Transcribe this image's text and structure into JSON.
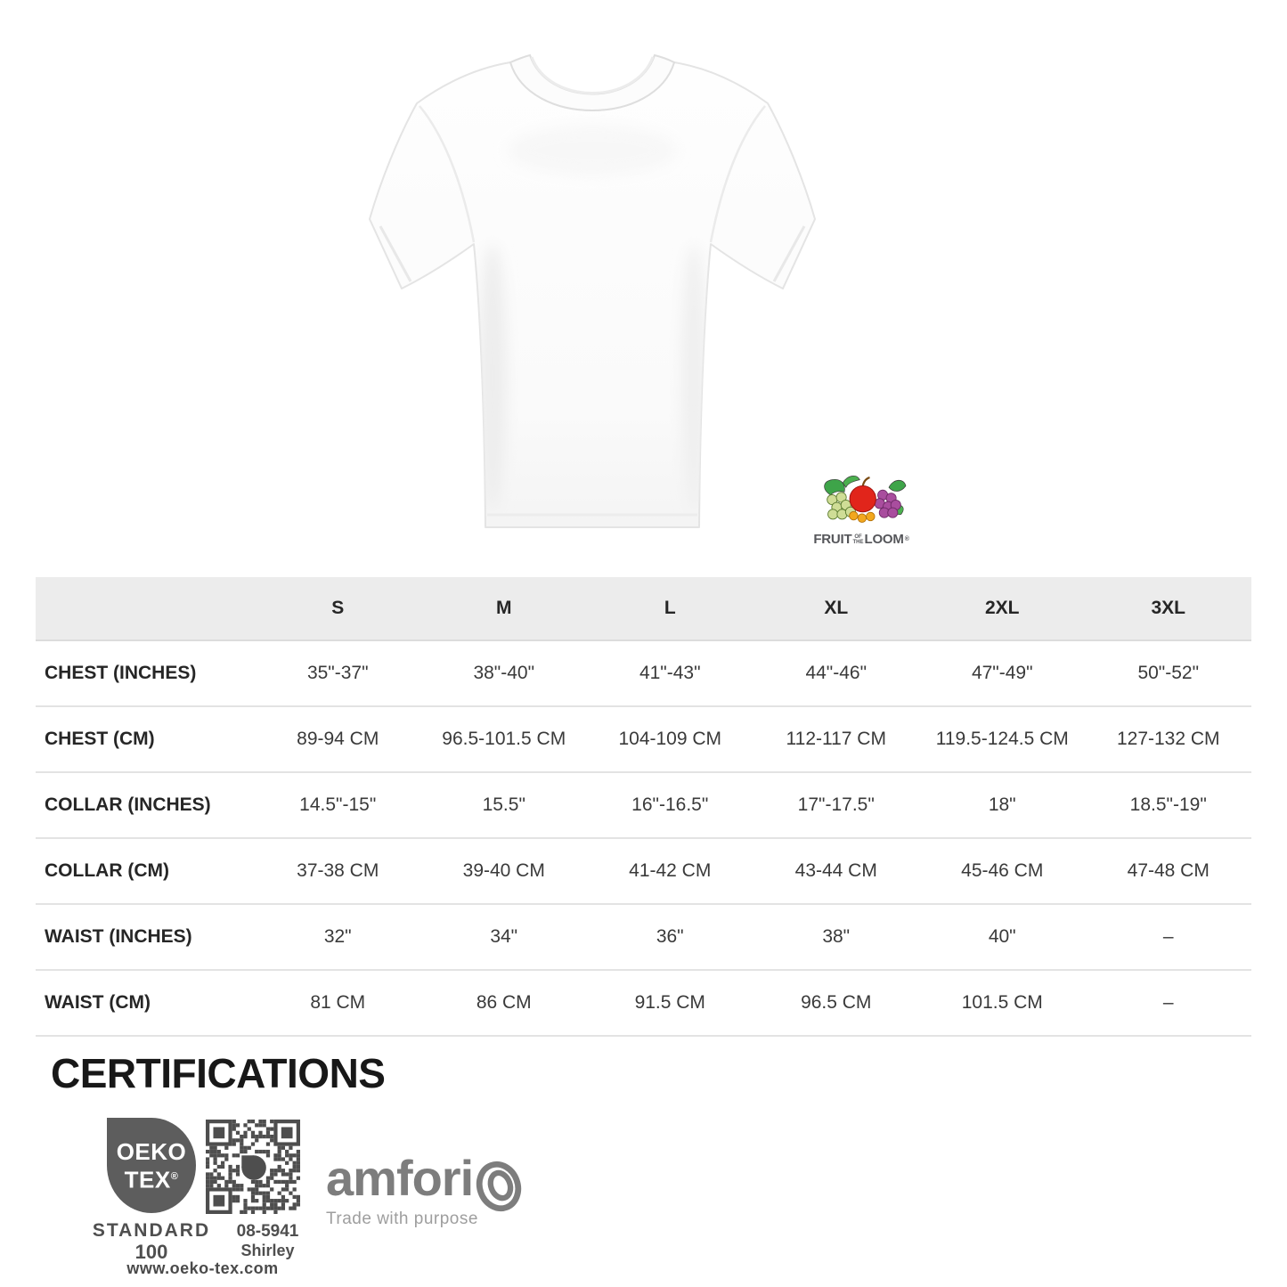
{
  "brand_logo": {
    "fruit": "FRUIT",
    "of": "OF",
    "the": "THE",
    "loom": "LOOM",
    "registered": "®"
  },
  "size_table": {
    "columns": [
      "S",
      "M",
      "L",
      "XL",
      "2XL",
      "3XL"
    ],
    "rows": [
      {
        "label": "CHEST (INCHES)",
        "values": [
          "35\"-37\"",
          "38\"-40\"",
          "41\"-43\"",
          "44\"-46\"",
          "47\"-49\"",
          "50\"-52\""
        ]
      },
      {
        "label": "CHEST (CM)",
        "values": [
          "89-94 CM",
          "96.5-101.5 CM",
          "104-109 CM",
          "112-117 CM",
          "119.5-124.5 CM",
          "127-132 CM"
        ]
      },
      {
        "label": "COLLAR (INCHES)",
        "values": [
          "14.5\"-15\"",
          "15.5\"",
          "16\"-16.5\"",
          "17\"-17.5\"",
          "18\"",
          "18.5\"-19\""
        ]
      },
      {
        "label": "COLLAR (CM)",
        "values": [
          "37-38 CM",
          "39-40 CM",
          "41-42 CM",
          "43-44 CM",
          "45-46 CM",
          "47-48 CM"
        ]
      },
      {
        "label": "WAIST (INCHES)",
        "values": [
          "32\"",
          "34\"",
          "36\"",
          "38\"",
          "40\"",
          "–"
        ]
      },
      {
        "label": "WAIST (CM)",
        "values": [
          "81 CM",
          "86 CM",
          "91.5 CM",
          "96.5 CM",
          "101.5 CM",
          "–"
        ]
      }
    ]
  },
  "certifications": {
    "heading": "CERTIFICATIONS",
    "oeko_tex": {
      "line1": "OEKO",
      "line2": "TEX",
      "registered": "®",
      "standard": "STANDARD",
      "hundred": "100",
      "cert_number": "08-5941",
      "cert_name": "Shirley",
      "website": "www.oeko-tex.com"
    },
    "amfori": {
      "name": "amfori",
      "tagline": "Trade with purpose"
    }
  },
  "icons": {
    "fruit_cluster": "fruit-cluster-icon",
    "oeko_leaf": "oeko-tex-drop-icon",
    "qr": "qr-code-icon",
    "amfori_spiral": "amfori-spiral-icon",
    "tshirt": "tshirt-image"
  },
  "colors": {
    "table_header_bg": "#ececec",
    "table_border": "#e3e3e3",
    "text_dark": "#262626",
    "oeko_gray": "#5d5d5d",
    "qr_gray": "#4e4e4e",
    "amfori_gray": "#7d7d7d",
    "amfori_light_gray": "#9e9e9e",
    "apple_red": "#e1251b",
    "grape_purple": "#a94d9e",
    "grape_green": "#cfdd96",
    "leaf_green": "#3ea449",
    "fruit_gold": "#f2a71e"
  }
}
